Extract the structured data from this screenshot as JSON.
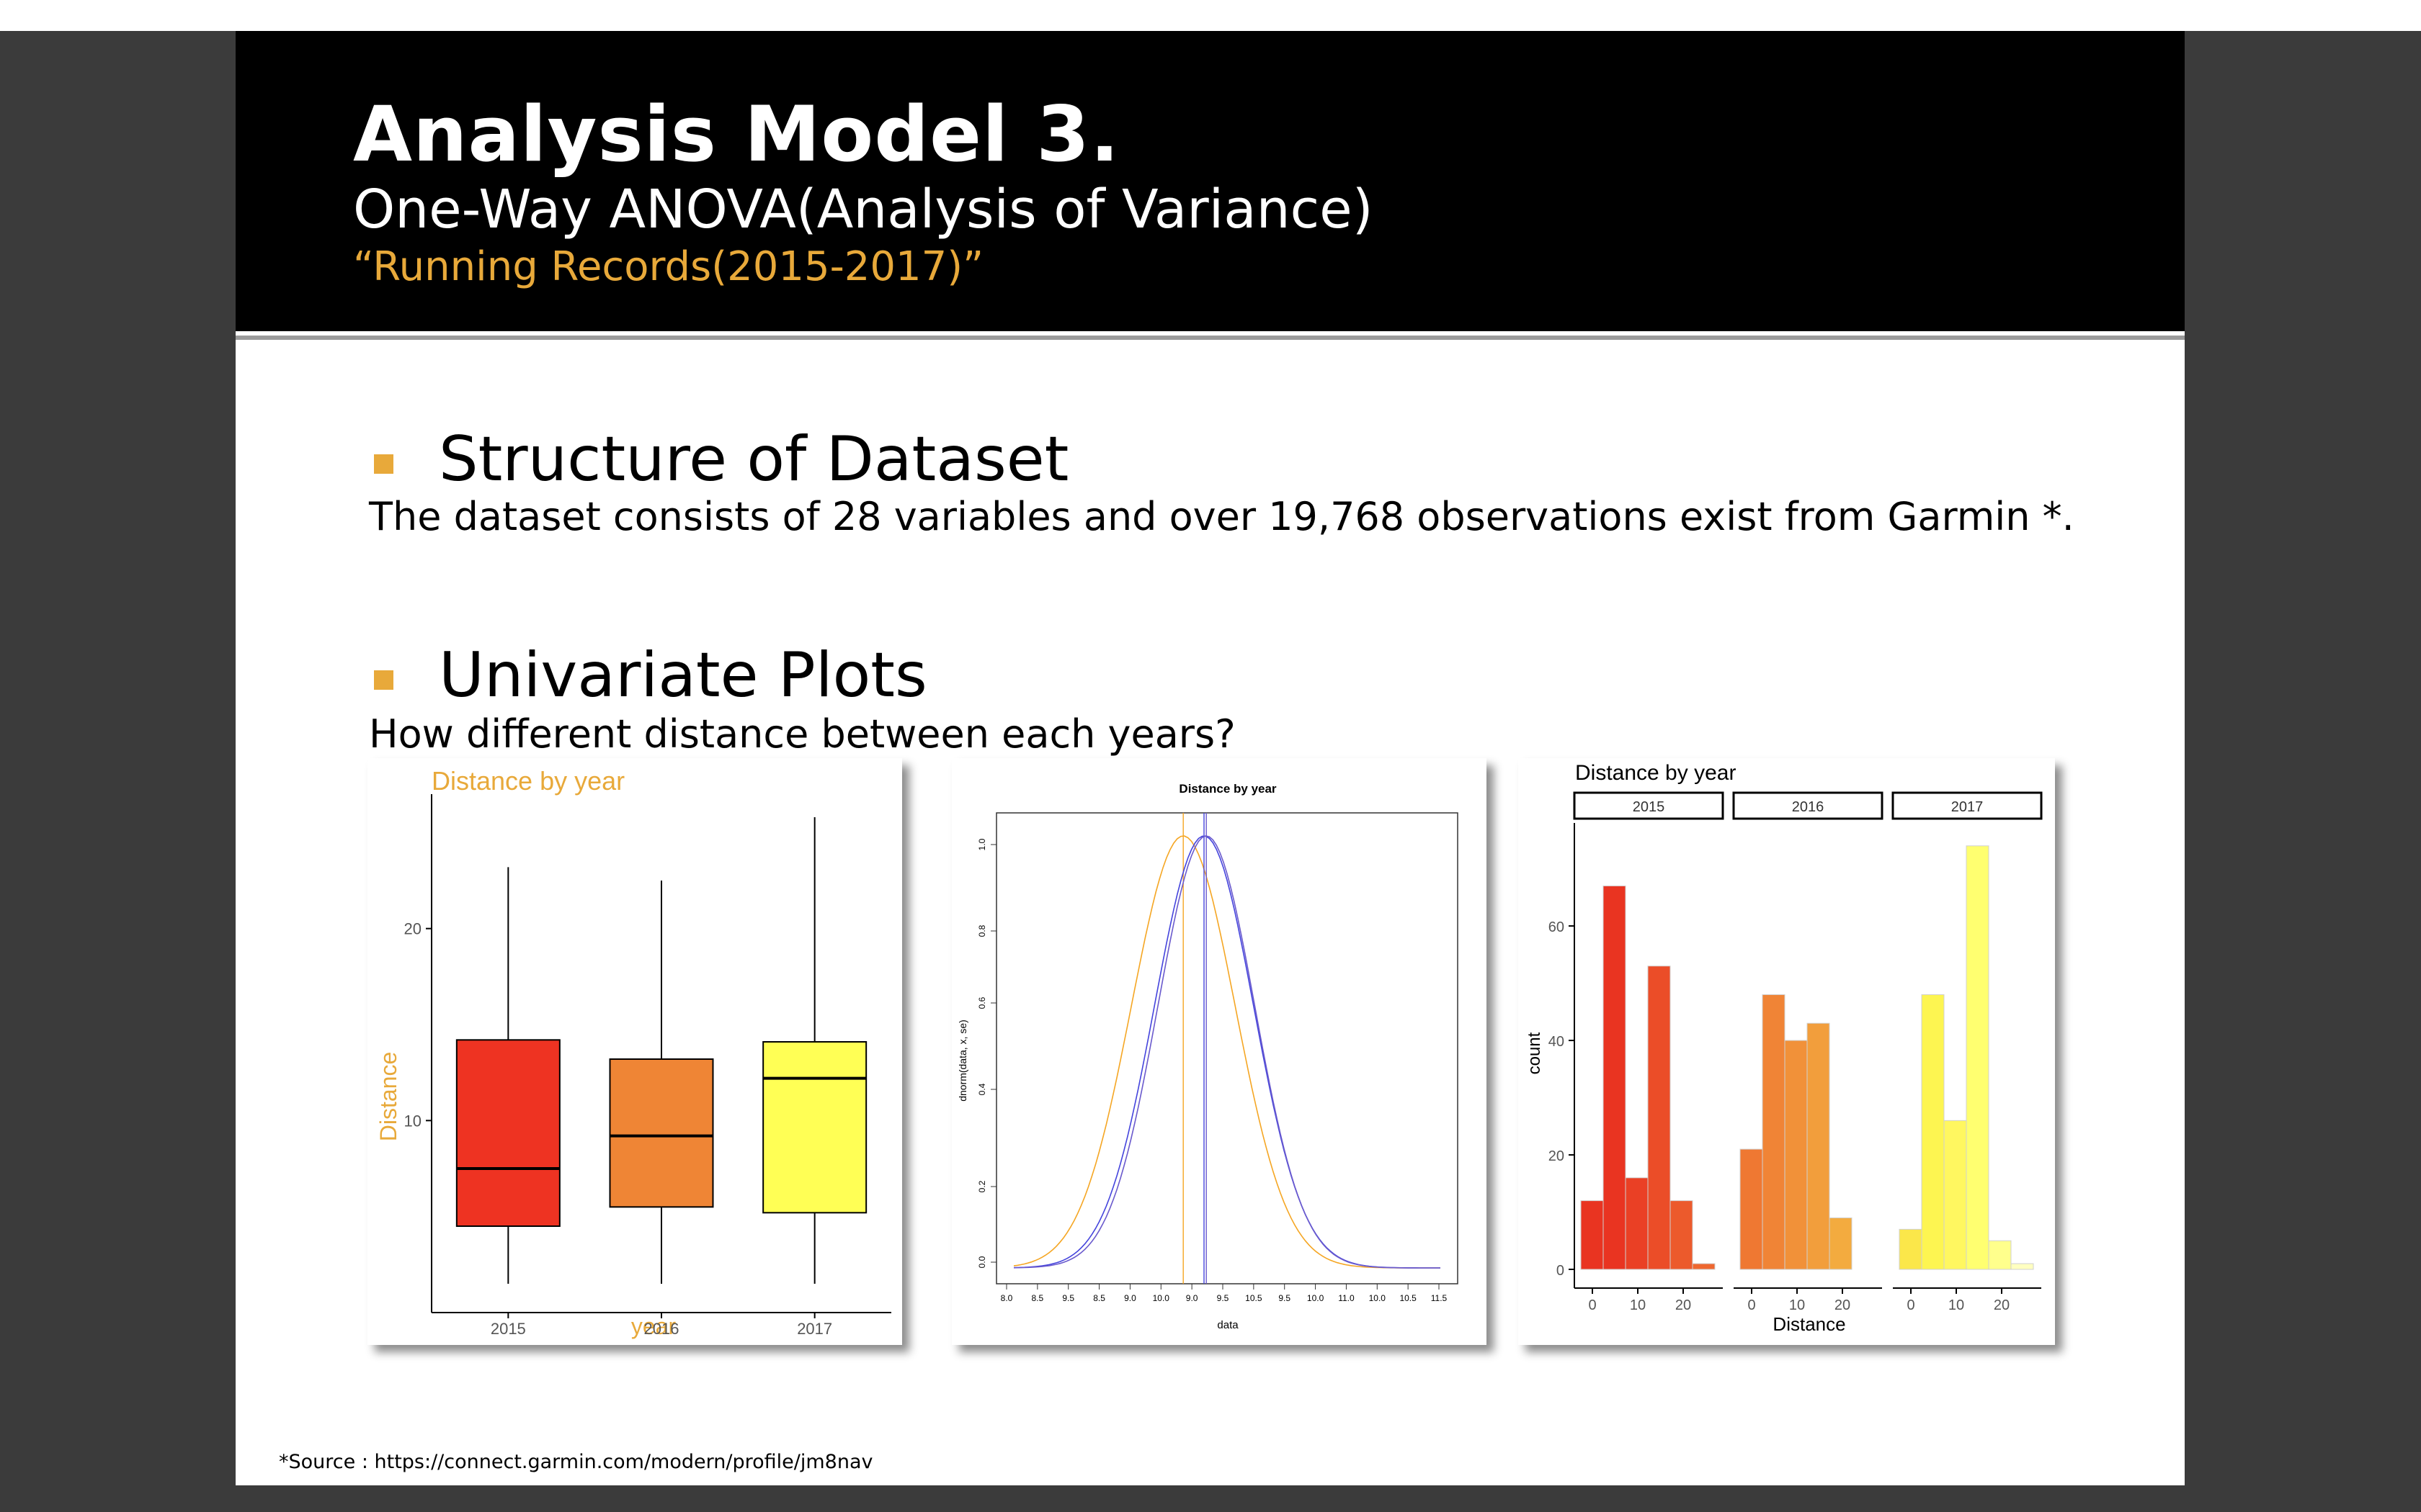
{
  "slide": {
    "title": "Analysis Model 3.",
    "subtitle": "One-Way ANOVA(Analysis of Variance)",
    "quote": "“Running Records(2015-2017)”",
    "section1_heading": "Structure of Dataset",
    "section1_text": "The dataset consists of 28 variables and over 19,768 observations exist from Garmin *.",
    "section2_heading": "Univariate Plots",
    "section2_text": "How different distance between each years?",
    "source": "*Source : https://connect.garmin.com/modern/profile/jm8nav"
  },
  "colors": {
    "accent": "#e8a93a",
    "header_bg": "#000000"
  },
  "chart_data": [
    {
      "type": "box",
      "title": "Distance by year",
      "xlabel": "year",
      "ylabel": "Distance",
      "categories": [
        "2015",
        "2016",
        "2017"
      ],
      "yticks": [
        10,
        20
      ],
      "ylim": [
        0,
        27
      ],
      "colors": [
        "#ee3322",
        "#ef8535",
        "#ffff55"
      ],
      "boxes": [
        {
          "min": 1.5,
          "q1": 4.5,
          "median": 7.5,
          "q3": 14.2,
          "max": 23.2
        },
        {
          "min": 1.5,
          "q1": 5.5,
          "median": 9.2,
          "q3": 13.2,
          "max": 22.5
        },
        {
          "min": 1.5,
          "q1": 5.2,
          "median": 12.2,
          "q3": 14.1,
          "max": 25.8
        }
      ]
    },
    {
      "type": "line",
      "title": "Distance by year",
      "xlabel": "data",
      "ylabel": "dnorm(data, x, se)",
      "xticks": [
        "8.0",
        "8.5",
        "9.5",
        "8.5",
        "9.0",
        "10.0",
        "9.0",
        "9.5",
        "10.5",
        "9.5",
        "10.0",
        "11.0",
        "10.0",
        "10.5",
        "11.5"
      ],
      "xlim": [
        7.9,
        11.9
      ],
      "series": [
        {
          "color": "#f5a623",
          "mean": 9.52,
          "sd": 0.45
        },
        {
          "color": "#4444dd",
          "mean": 9.7,
          "sd": 0.43
        },
        {
          "color": "#6a5acd",
          "mean": 9.72,
          "sd": 0.42
        }
      ]
    },
    {
      "type": "bar",
      "title": "Distance by year",
      "xlabel": "Distance",
      "ylabel": "count",
      "yticks": [
        0,
        20,
        40,
        60
      ],
      "ylim": [
        0,
        78
      ],
      "xticks": [
        "0",
        "10",
        "20"
      ],
      "panels": [
        {
          "name": "2015",
          "values": [
            12,
            67,
            16,
            53,
            12,
            1
          ],
          "colors": [
            "#e93421",
            "#e93421",
            "#ea4025",
            "#eb4d28",
            "#ec5a2c",
            "#ee6730"
          ]
        },
        {
          "name": "2016",
          "values": [
            21,
            48,
            40,
            43,
            9,
            0
          ],
          "colors": [
            "#ef7832",
            "#f08436",
            "#f19139",
            "#f29e3c",
            "#f3ab3f",
            "#f4b842"
          ]
        },
        {
          "name": "2017",
          "values": [
            7,
            48,
            26,
            74,
            5,
            1
          ],
          "colors": [
            "#fbe74a",
            "#fdf551",
            "#fff760",
            "#ffff70",
            "#ffff8c",
            "#ffffc0"
          ]
        }
      ]
    }
  ]
}
